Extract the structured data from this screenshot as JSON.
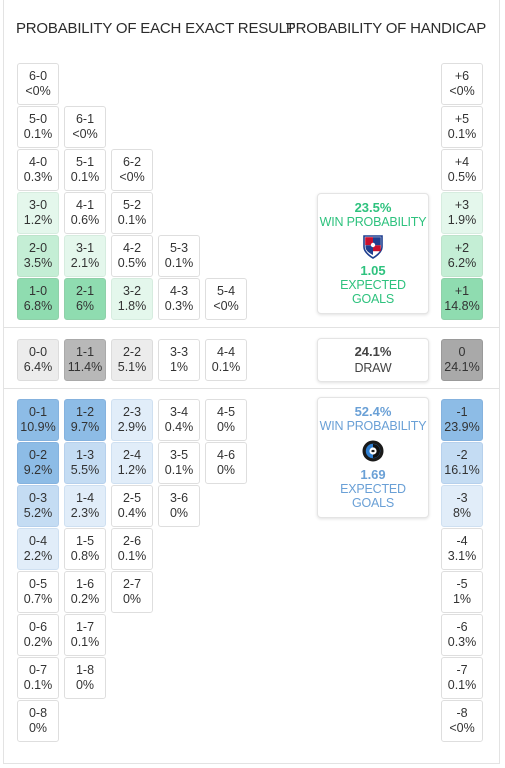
{
  "headers": {
    "exact": "PROBABILITY OF EACH EXACT RESULT",
    "handicap": "PROBABILITY OF HANDICAP"
  },
  "colors": {
    "home_accent": "#2ec27e",
    "away_accent": "#6aa0d6",
    "draw_text": "#444444"
  },
  "home_results": [
    {
      "score": "6-0",
      "prob": "<0%",
      "col": 0,
      "row": 0,
      "shade": 0
    },
    {
      "score": "5-0",
      "prob": "0.1%",
      "col": 0,
      "row": 1,
      "shade": 0
    },
    {
      "score": "6-1",
      "prob": "<0%",
      "col": 1,
      "row": 1,
      "shade": 0
    },
    {
      "score": "4-0",
      "prob": "0.3%",
      "col": 0,
      "row": 2,
      "shade": 0
    },
    {
      "score": "5-1",
      "prob": "0.1%",
      "col": 1,
      "row": 2,
      "shade": 0
    },
    {
      "score": "6-2",
      "prob": "<0%",
      "col": 2,
      "row": 2,
      "shade": 0
    },
    {
      "score": "3-0",
      "prob": "1.2%",
      "col": 0,
      "row": 3,
      "shade": 1
    },
    {
      "score": "4-1",
      "prob": "0.6%",
      "col": 1,
      "row": 3,
      "shade": 0
    },
    {
      "score": "5-2",
      "prob": "0.1%",
      "col": 2,
      "row": 3,
      "shade": 0
    },
    {
      "score": "2-0",
      "prob": "3.5%",
      "col": 0,
      "row": 4,
      "shade": 2
    },
    {
      "score": "3-1",
      "prob": "2.1%",
      "col": 1,
      "row": 4,
      "shade": 1
    },
    {
      "score": "4-2",
      "prob": "0.5%",
      "col": 2,
      "row": 4,
      "shade": 0
    },
    {
      "score": "5-3",
      "prob": "0.1%",
      "col": 3,
      "row": 4,
      "shade": 0
    },
    {
      "score": "1-0",
      "prob": "6.8%",
      "col": 0,
      "row": 5,
      "shade": 3
    },
    {
      "score": "2-1",
      "prob": "6%",
      "col": 1,
      "row": 5,
      "shade": 3
    },
    {
      "score": "3-2",
      "prob": "1.8%",
      "col": 2,
      "row": 5,
      "shade": 1
    },
    {
      "score": "4-3",
      "prob": "0.3%",
      "col": 3,
      "row": 5,
      "shade": 0
    },
    {
      "score": "5-4",
      "prob": "<0%",
      "col": 4,
      "row": 5,
      "shade": 0
    }
  ],
  "draw_results": [
    {
      "score": "0-0",
      "prob": "6.4%",
      "col": 0,
      "shade": 1
    },
    {
      "score": "1-1",
      "prob": "11.4%",
      "col": 1,
      "shade": 3
    },
    {
      "score": "2-2",
      "prob": "5.1%",
      "col": 2,
      "shade": 1
    },
    {
      "score": "3-3",
      "prob": "1%",
      "col": 3,
      "shade": 0
    },
    {
      "score": "4-4",
      "prob": "0.1%",
      "col": 4,
      "shade": 0
    }
  ],
  "away_results": [
    {
      "score": "0-1",
      "prob": "10.9%",
      "col": 0,
      "row": 0,
      "shade": 3
    },
    {
      "score": "1-2",
      "prob": "9.7%",
      "col": 1,
      "row": 0,
      "shade": 3
    },
    {
      "score": "2-3",
      "prob": "2.9%",
      "col": 2,
      "row": 0,
      "shade": 1
    },
    {
      "score": "3-4",
      "prob": "0.4%",
      "col": 3,
      "row": 0,
      "shade": 0
    },
    {
      "score": "4-5",
      "prob": "0%",
      "col": 4,
      "row": 0,
      "shade": 0
    },
    {
      "score": "0-2",
      "prob": "9.2%",
      "col": 0,
      "row": 1,
      "shade": 3
    },
    {
      "score": "1-3",
      "prob": "5.5%",
      "col": 1,
      "row": 1,
      "shade": 2
    },
    {
      "score": "2-4",
      "prob": "1.2%",
      "col": 2,
      "row": 1,
      "shade": 1
    },
    {
      "score": "3-5",
      "prob": "0.1%",
      "col": 3,
      "row": 1,
      "shade": 0
    },
    {
      "score": "4-6",
      "prob": "0%",
      "col": 4,
      "row": 1,
      "shade": 0
    },
    {
      "score": "0-3",
      "prob": "5.2%",
      "col": 0,
      "row": 2,
      "shade": 2
    },
    {
      "score": "1-4",
      "prob": "2.3%",
      "col": 1,
      "row": 2,
      "shade": 1
    },
    {
      "score": "2-5",
      "prob": "0.4%",
      "col": 2,
      "row": 2,
      "shade": 0
    },
    {
      "score": "3-6",
      "prob": "0%",
      "col": 3,
      "row": 2,
      "shade": 0
    },
    {
      "score": "0-4",
      "prob": "2.2%",
      "col": 0,
      "row": 3,
      "shade": 1
    },
    {
      "score": "1-5",
      "prob": "0.8%",
      "col": 1,
      "row": 3,
      "shade": 0
    },
    {
      "score": "2-6",
      "prob": "0.1%",
      "col": 2,
      "row": 3,
      "shade": 0
    },
    {
      "score": "0-5",
      "prob": "0.7%",
      "col": 0,
      "row": 4,
      "shade": 0
    },
    {
      "score": "1-6",
      "prob": "0.2%",
      "col": 1,
      "row": 4,
      "shade": 0
    },
    {
      "score": "2-7",
      "prob": "0%",
      "col": 2,
      "row": 4,
      "shade": 0
    },
    {
      "score": "0-6",
      "prob": "0.2%",
      "col": 0,
      "row": 5,
      "shade": 0
    },
    {
      "score": "1-7",
      "prob": "0.1%",
      "col": 1,
      "row": 5,
      "shade": 0
    },
    {
      "score": "0-7",
      "prob": "0.1%",
      "col": 0,
      "row": 6,
      "shade": 0
    },
    {
      "score": "1-8",
      "prob": "0%",
      "col": 1,
      "row": 6,
      "shade": 0
    },
    {
      "score": "0-8",
      "prob": "0%",
      "col": 0,
      "row": 7,
      "shade": 0
    }
  ],
  "home_handicap": [
    {
      "label": "+6",
      "prob": "<0%",
      "shade": 0
    },
    {
      "label": "+5",
      "prob": "0.1%",
      "shade": 0
    },
    {
      "label": "+4",
      "prob": "0.5%",
      "shade": 0
    },
    {
      "label": "+3",
      "prob": "1.9%",
      "shade": 1
    },
    {
      "label": "+2",
      "prob": "6.2%",
      "shade": 2
    },
    {
      "label": "+1",
      "prob": "14.8%",
      "shade": 3
    }
  ],
  "draw_handicap": {
    "label": "0",
    "prob": "24.1%"
  },
  "away_handicap": [
    {
      "label": "-1",
      "prob": "23.9%",
      "shade": 3
    },
    {
      "label": "-2",
      "prob": "16.1%",
      "shade": 2
    },
    {
      "label": "-3",
      "prob": "8%",
      "shade": 1
    },
    {
      "label": "-4",
      "prob": "3.1%",
      "shade": 0
    },
    {
      "label": "-5",
      "prob": "1%",
      "shade": 0
    },
    {
      "label": "-6",
      "prob": "0.3%",
      "shade": 0
    },
    {
      "label": "-7",
      "prob": "0.1%",
      "shade": 0
    },
    {
      "label": "-8",
      "prob": "<0%",
      "shade": 0
    }
  ],
  "home_card": {
    "win_prob": "23.5%",
    "win_label": "WIN PROBABILITY",
    "xg": "1.05",
    "xg_label": "EXPECTED GOALS",
    "crest_icon": "shield-crest-red-blue"
  },
  "draw_card": {
    "prob": "24.1%",
    "label": "DRAW"
  },
  "away_card": {
    "win_prob": "52.4%",
    "win_label": "WIN PROBABILITY",
    "xg": "1.69",
    "xg_label": "EXPECTED GOALS",
    "crest_icon": "round-crest-black-blue"
  }
}
